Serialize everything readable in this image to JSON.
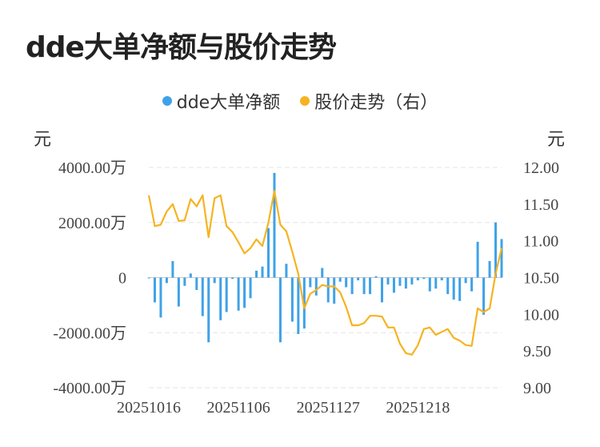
{
  "title": "dde大单净额与股价走势",
  "legend": [
    {
      "label": "dde大单净额",
      "color": "#3fa2e8"
    },
    {
      "label": "股价走势（右）",
      "color": "#f6b321"
    }
  ],
  "unit_left": "元",
  "unit_right": "元",
  "chart_data": {
    "type": "bar+line",
    "categories": [
      "20251016",
      "20251017",
      "20251020",
      "20251021",
      "20251022",
      "20251023",
      "20251024",
      "20251027",
      "20251028",
      "20251029",
      "20251030",
      "20251031",
      "20251103",
      "20251104",
      "20251105",
      "20251106",
      "20251107",
      "20251110",
      "20251111",
      "20251112",
      "20251113",
      "20251114",
      "20251117",
      "20251118",
      "20251119",
      "20251120",
      "20251121",
      "20251124",
      "20251125",
      "20251126",
      "20251127",
      "20251128",
      "20251201",
      "20251202",
      "20251203",
      "20251204",
      "20251205",
      "20251208",
      "20251209",
      "20251210",
      "20251211",
      "20251212",
      "20251215",
      "20251216",
      "20251217",
      "20251218",
      "20251219",
      "20251222",
      "20251223",
      "20251224",
      "20251225",
      "20251226",
      "20251229",
      "20251230",
      "20251231",
      "20260105",
      "20260106",
      "20260107",
      "20260108",
      "20260109"
    ],
    "x_tick_labels": [
      "20251016",
      "20251106",
      "20251127",
      "20251218"
    ],
    "y_left": {
      "ticks": [
        "4000.00万",
        "2000.00万",
        "0",
        "-2000.00万",
        "-4000.00万"
      ],
      "ylim": [
        -4000,
        4000
      ],
      "unit": "万元"
    },
    "y_right": {
      "ticks": [
        "12.00",
        "11.50",
        "11.00",
        "10.50",
        "10.00",
        "9.50",
        "9.00"
      ],
      "ylim": [
        9.0,
        12.0
      ]
    },
    "grid": true,
    "legend_position": "top-center",
    "series": [
      {
        "name": "dde大单净额",
        "type": "bar",
        "axis": "left",
        "color": "#3fa2e8",
        "values": [
          -30,
          -900,
          -1450,
          -200,
          600,
          -1050,
          -300,
          150,
          -450,
          -1400,
          -2350,
          -200,
          -1550,
          -1250,
          -50,
          -1200,
          -1100,
          -750,
          250,
          400,
          1800,
          3800,
          -2350,
          500,
          -1600,
          -2050,
          -1850,
          -350,
          -650,
          350,
          -900,
          -950,
          -150,
          -350,
          -600,
          -100,
          -600,
          -600,
          50,
          -900,
          -250,
          -550,
          -300,
          -400,
          -250,
          -100,
          -50,
          -500,
          -400,
          -100,
          -600,
          -800,
          -850,
          -200,
          -500,
          1300,
          -1350,
          600,
          2000,
          1400
        ]
      },
      {
        "name": "股价走势（右）",
        "type": "line",
        "axis": "right",
        "color": "#f6b321",
        "values": [
          11.62,
          11.2,
          11.22,
          11.4,
          11.5,
          11.27,
          11.28,
          11.57,
          11.47,
          11.62,
          11.05,
          11.58,
          11.62,
          11.2,
          11.12,
          10.98,
          10.83,
          10.9,
          11.02,
          10.93,
          11.25,
          11.68,
          11.22,
          11.13,
          10.85,
          10.55,
          10.08,
          10.28,
          10.33,
          10.4,
          10.38,
          10.38,
          10.3,
          10.1,
          9.85,
          9.85,
          9.88,
          9.98,
          9.98,
          9.97,
          9.82,
          9.82,
          9.6,
          9.47,
          9.45,
          9.58,
          9.8,
          9.82,
          9.72,
          9.76,
          9.8,
          9.68,
          9.64,
          9.58,
          9.57,
          10.08,
          10.03,
          10.08,
          10.55,
          10.9
        ]
      }
    ]
  }
}
